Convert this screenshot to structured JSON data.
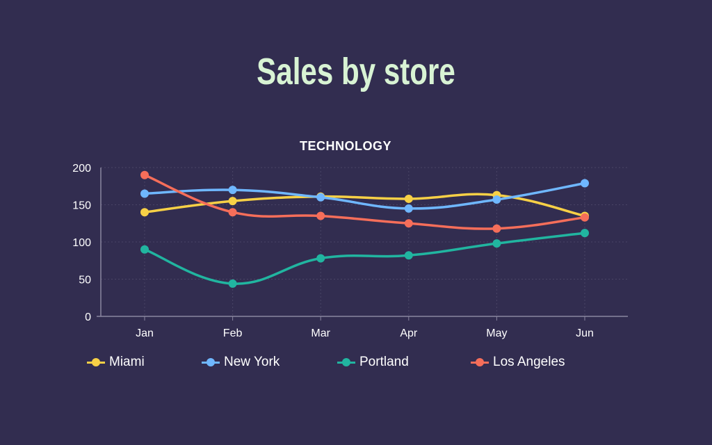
{
  "title": "Sales by store",
  "chart_data": {
    "type": "line",
    "title": "TECHNOLOGY",
    "categories": [
      "Jan",
      "Feb",
      "Mar",
      "Apr",
      "May",
      "Jun"
    ],
    "ylim": [
      0,
      200
    ],
    "yticks": [
      0,
      50,
      100,
      150,
      200
    ],
    "grid": true,
    "smooth": true,
    "legend_position": "bottom",
    "series": [
      {
        "name": "Miami",
        "color": "#f7d046",
        "values": [
          140,
          155,
          161,
          158,
          163,
          135
        ]
      },
      {
        "name": "New York",
        "color": "#6fb7ff",
        "values": [
          165,
          170,
          160,
          145,
          157,
          179
        ]
      },
      {
        "name": "Portland",
        "color": "#21b5a0",
        "values": [
          90,
          44,
          78,
          82,
          98,
          112
        ]
      },
      {
        "name": "Los Angeles",
        "color": "#f56e5a",
        "values": [
          190,
          140,
          135,
          125,
          118,
          133
        ]
      }
    ]
  }
}
